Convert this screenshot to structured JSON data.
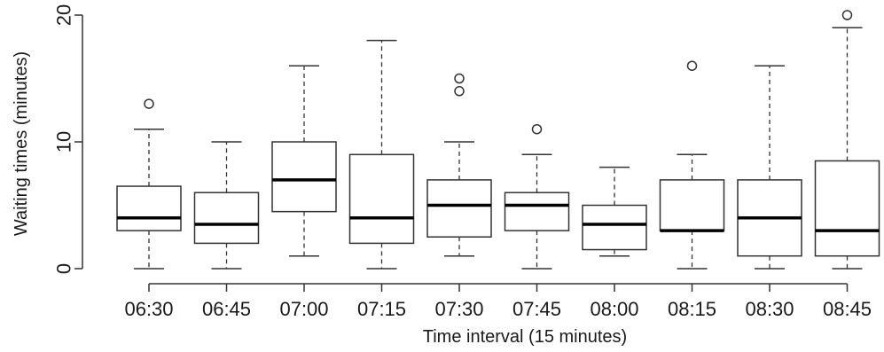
{
  "chart_data": {
    "type": "boxplot",
    "title": "",
    "xlabel": "Time interval (15 minutes)",
    "ylabel": "Waiting times (minutes)",
    "ylim": [
      0,
      20
    ],
    "yticks": [
      0,
      10,
      20
    ],
    "grid": false,
    "categories": [
      "06:30",
      "06:45",
      "07:00",
      "07:15",
      "07:30",
      "07:45",
      "08:00",
      "08:15",
      "08:30",
      "08:45"
    ],
    "boxes": [
      {
        "min": 0,
        "q1": 3,
        "median": 4,
        "q3": 6.5,
        "max": 11,
        "outliers": [
          13
        ]
      },
      {
        "min": 0,
        "q1": 2,
        "median": 3.5,
        "q3": 6,
        "max": 10,
        "outliers": []
      },
      {
        "min": 1,
        "q1": 4.5,
        "median": 7,
        "q3": 10,
        "max": 16,
        "outliers": []
      },
      {
        "min": 0,
        "q1": 2,
        "median": 4,
        "q3": 9,
        "max": 18,
        "outliers": []
      },
      {
        "min": 1,
        "q1": 2.5,
        "median": 5,
        "q3": 7,
        "max": 10,
        "outliers": [
          14,
          15
        ]
      },
      {
        "min": 0,
        "q1": 3,
        "median": 5,
        "q3": 6,
        "max": 9,
        "outliers": [
          11
        ]
      },
      {
        "min": 1,
        "q1": 1.5,
        "median": 3.5,
        "q3": 5,
        "max": 8,
        "outliers": []
      },
      {
        "min": 0,
        "q1": 3,
        "median": 3,
        "q3": 7,
        "max": 9,
        "outliers": [
          16
        ]
      },
      {
        "min": 0,
        "q1": 1,
        "median": 4,
        "q3": 7,
        "max": 16,
        "outliers": []
      },
      {
        "min": 0,
        "q1": 1,
        "median": 3,
        "q3": 8.5,
        "max": 19,
        "outliers": [
          20
        ]
      }
    ]
  }
}
